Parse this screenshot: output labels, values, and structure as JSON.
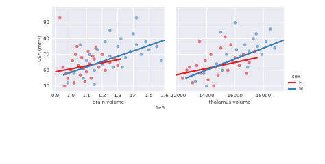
{
  "chart_data": [
    {
      "type": "scatter",
      "xlabel": "brain volume",
      "ylabel": "CSA (mm²)",
      "x_offset_label": "1e6",
      "xlim": [
        0.88,
        1.6
      ],
      "xticks": [
        0.9,
        {
          "value": 1,
          "label": "1.0"
        },
        1.1,
        1.2,
        1.3,
        1.4,
        1.5,
        1.6
      ],
      "ylim": [
        47,
        100
      ],
      "yticks": [
        50,
        60,
        70,
        80,
        90
      ],
      "grid": true,
      "show_ytick_labels": true,
      "series": [
        {
          "name": "F",
          "color": "#e41a1c",
          "x": [
            0.93,
            0.95,
            0.97,
            0.98,
            1.0,
            1.01,
            1.02,
            1.03,
            1.05,
            1.06,
            1.07,
            1.08,
            1.1,
            1.11,
            1.12,
            1.13,
            1.15,
            1.16,
            1.18,
            1.2,
            1.22,
            1.25,
            1.28,
            1.3,
            0.96,
            1.04,
            1.09,
            1.14
          ],
          "values": [
            93,
            62,
            58,
            55,
            60,
            66,
            52,
            70,
            63,
            57,
            68,
            61,
            59,
            72,
            64,
            55,
            67,
            74,
            62,
            70,
            60,
            65,
            68,
            63,
            50,
            75,
            53,
            69
          ],
          "fit_x": [
            0.9,
            1.32
          ],
          "fit": [
            59,
            67
          ]
        },
        {
          "name": "M",
          "color": "#377eb8",
          "x": [
            0.98,
            1.02,
            1.05,
            1.08,
            1.1,
            1.12,
            1.15,
            1.17,
            1.2,
            1.22,
            1.25,
            1.27,
            1.3,
            1.32,
            1.35,
            1.38,
            1.4,
            1.42,
            1.45,
            1.48,
            1.5,
            1.55,
            1.58,
            1.25,
            1.15,
            1.33,
            1.06,
            1.42
          ],
          "values": [
            52,
            58,
            62,
            55,
            66,
            70,
            60,
            73,
            64,
            78,
            69,
            62,
            75,
            80,
            68,
            72,
            83,
            76,
            70,
            78,
            73,
            75,
            66,
            85,
            51,
            62,
            76,
            93
          ],
          "fit_x": [
            0.95,
            1.6
          ],
          "fit": [
            57,
            79
          ]
        }
      ]
    },
    {
      "type": "scatter",
      "xlabel": "thalamus volume",
      "xlim": [
        11800,
        19450
      ],
      "xticks": [
        12000,
        14000,
        16000,
        18000
      ],
      "ylim": [
        47,
        100
      ],
      "yticks": [
        50,
        60,
        70,
        80,
        90
      ],
      "grid": true,
      "show_ytick_labels": false,
      "legend": {
        "title": "sex",
        "position": "right"
      },
      "series": [
        {
          "name": "F",
          "color": "#e41a1c",
          "x": [
            12300,
            12600,
            13000,
            13300,
            13600,
            13900,
            14100,
            14300,
            14600,
            14800,
            15000,
            15200,
            15500,
            15700,
            16000,
            16300,
            16600,
            17000,
            17400,
            13500,
            14500,
            15300,
            16800,
            12800
          ],
          "values": [
            55,
            60,
            52,
            63,
            58,
            66,
            54,
            70,
            62,
            57,
            74,
            64,
            60,
            76,
            68,
            63,
            70,
            65,
            72,
            78,
            50,
            81,
            58,
            62
          ],
          "fit_x": [
            11800,
            17600
          ],
          "fit": [
            57,
            68
          ]
        },
        {
          "name": "M",
          "color": "#377eb8",
          "x": [
            13200,
            13800,
            14200,
            14700,
            15100,
            15400,
            15800,
            16100,
            16400,
            16700,
            17000,
            17300,
            17600,
            17900,
            18200,
            18500,
            18800,
            16000,
            15000,
            17500,
            14000,
            16900
          ],
          "values": [
            53,
            58,
            61,
            64,
            60,
            70,
            66,
            73,
            69,
            76,
            72,
            80,
            75,
            70,
            78,
            86,
            74,
            90,
            84,
            83,
            50,
            62
          ],
          "fit_x": [
            12500,
            19450
          ],
          "fit": [
            55,
            79
          ]
        }
      ]
    }
  ]
}
